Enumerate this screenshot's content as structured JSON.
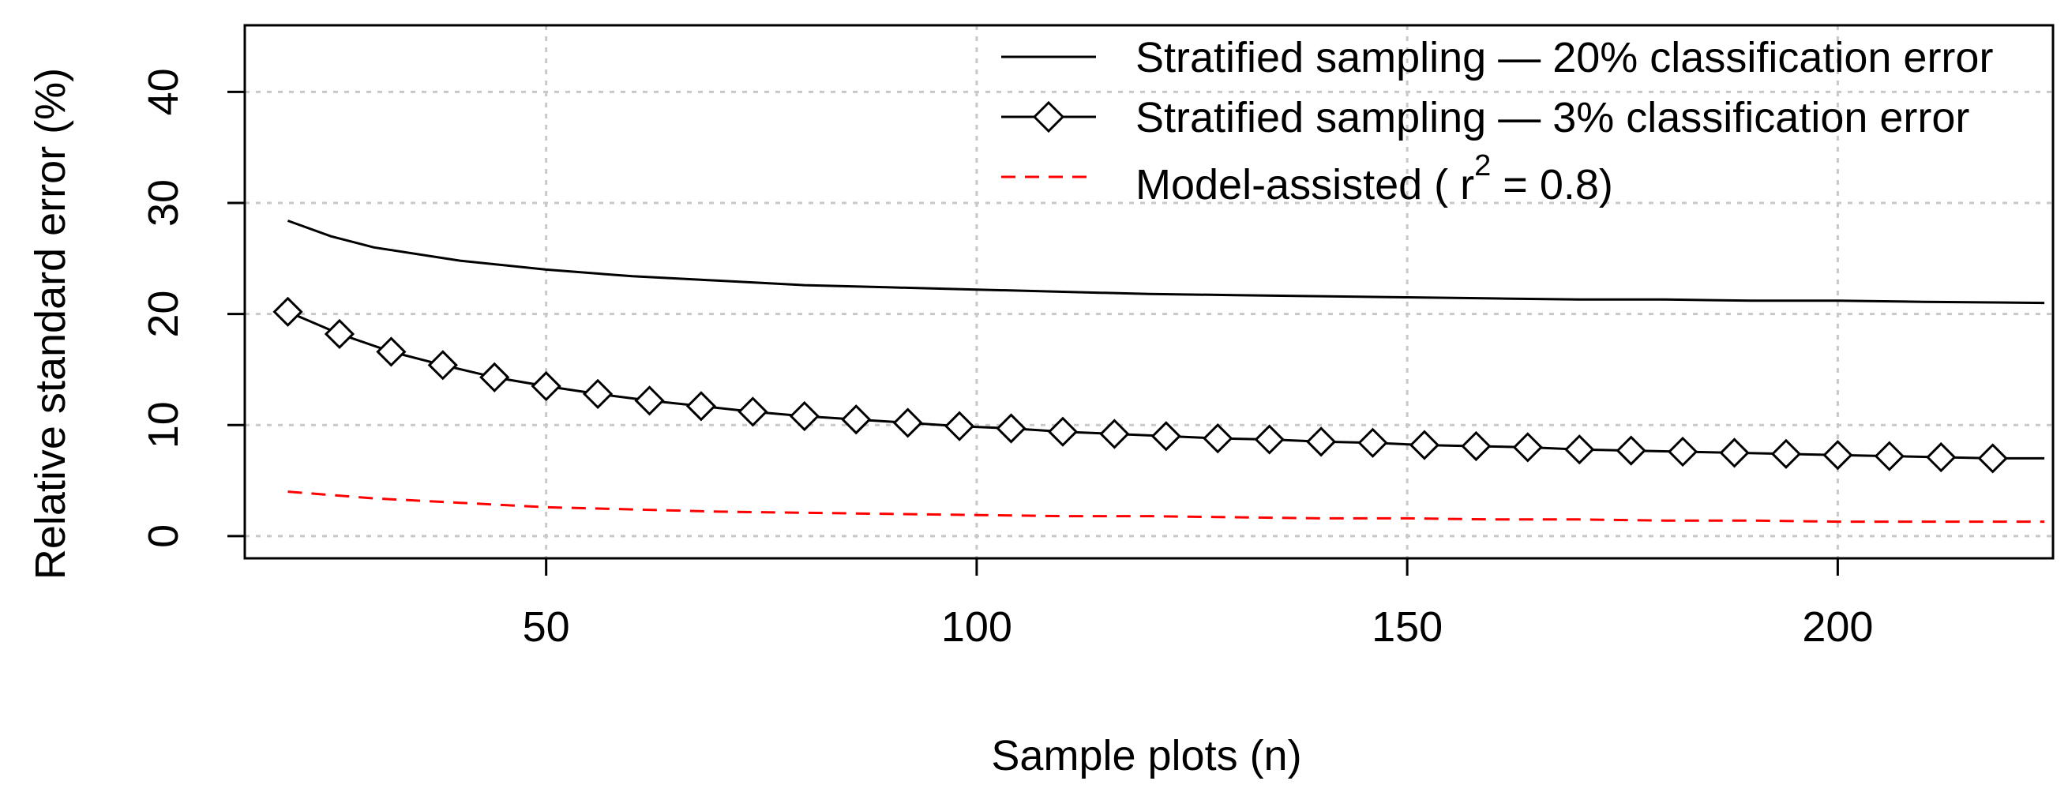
{
  "chart_data": {
    "type": "line",
    "title": "",
    "xlabel": "Sample plots (n)",
    "ylabel": "Relative standard error (%)",
    "xlim": [
      15,
      225
    ],
    "ylim": [
      -2,
      46
    ],
    "xticks": [
      50,
      100,
      150,
      200
    ],
    "yticks": [
      0,
      10,
      20,
      30,
      40
    ],
    "grid": true,
    "legend_position": "top-right",
    "legend": {
      "s1": "Stratified sampling — 20% classification error",
      "s2": "Stratified sampling — 3% classification error",
      "s3_prefix": "Model-assisted ( r",
      "s3_sup": "2",
      "s3_suffix": " = 0.8)"
    },
    "series": [
      {
        "name": "Stratified sampling — 20% classification error",
        "style": "solid",
        "color": "#000000",
        "marker": "none",
        "x": [
          20,
          25,
          30,
          40,
          50,
          60,
          70,
          80,
          90,
          100,
          110,
          120,
          130,
          140,
          150,
          160,
          170,
          180,
          190,
          200,
          210,
          224
        ],
        "y": [
          28.4,
          27.0,
          26.0,
          24.8,
          24.0,
          23.4,
          23.0,
          22.6,
          22.4,
          22.2,
          22.0,
          21.8,
          21.7,
          21.6,
          21.5,
          21.4,
          21.3,
          21.3,
          21.2,
          21.2,
          21.1,
          21.0
        ]
      },
      {
        "name": "Stratified sampling — 3% classification error",
        "style": "solid",
        "color": "#000000",
        "marker": "diamond",
        "x": [
          20,
          26,
          32,
          38,
          44,
          50,
          56,
          62,
          68,
          74,
          80,
          86,
          92,
          98,
          104,
          110,
          116,
          122,
          128,
          134,
          140,
          146,
          152,
          158,
          164,
          170,
          176,
          182,
          188,
          194,
          200,
          206,
          212,
          218,
          224
        ],
        "y": [
          20.2,
          18.2,
          16.6,
          15.4,
          14.3,
          13.5,
          12.8,
          12.2,
          11.7,
          11.2,
          10.8,
          10.5,
          10.2,
          9.9,
          9.7,
          9.4,
          9.2,
          9.0,
          8.8,
          8.7,
          8.5,
          8.4,
          8.2,
          8.1,
          8.0,
          7.8,
          7.7,
          7.6,
          7.5,
          7.4,
          7.3,
          7.2,
          7.1,
          7.0,
          7.0
        ],
        "marker_x": [
          20,
          26,
          32,
          38,
          44,
          50,
          56,
          62,
          68,
          74,
          80,
          86,
          92,
          98,
          104,
          110,
          116,
          122,
          128,
          134,
          140,
          146,
          152,
          158,
          164,
          170,
          176,
          182,
          188,
          194,
          200,
          206,
          212,
          218
        ]
      },
      {
        "name": "Model-assisted ( r2 = 0.8)",
        "style": "dashed",
        "color": "#ff0000",
        "marker": "none",
        "x": [
          20,
          30,
          40,
          50,
          60,
          70,
          80,
          90,
          100,
          110,
          120,
          130,
          140,
          150,
          160,
          170,
          180,
          190,
          200,
          210,
          224
        ],
        "y": [
          4.0,
          3.4,
          3.0,
          2.6,
          2.4,
          2.2,
          2.1,
          2.0,
          1.9,
          1.8,
          1.8,
          1.7,
          1.6,
          1.6,
          1.5,
          1.5,
          1.4,
          1.4,
          1.3,
          1.3,
          1.3
        ]
      }
    ]
  }
}
